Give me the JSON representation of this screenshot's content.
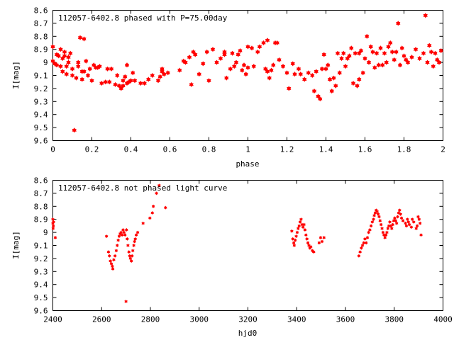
{
  "chart_data": [
    {
      "type": "scatter",
      "title": "112057-6402.8 phased with P=75.00day",
      "xlabel": "phase",
      "ylabel": "I[mag]",
      "xlim": [
        0,
        2
      ],
      "ylim": [
        8.6,
        9.6
      ],
      "y_inverted": true,
      "xticks": [
        "0",
        "0.2",
        "0.4",
        "0.6",
        "0.8",
        "1",
        "1.2",
        "1.4",
        "1.6",
        "1.8",
        "2"
      ],
      "yticks": [
        "8.6",
        "8.7",
        "8.8",
        "8.9",
        "9",
        "9.1",
        "9.2",
        "9.3",
        "9.4",
        "9.5",
        "9.6"
      ],
      "grid": false,
      "color": "#ff0000",
      "points": [
        [
          0.0,
          8.88
        ],
        [
          0.0,
          8.99
        ],
        [
          0.01,
          9.01
        ],
        [
          0.02,
          8.94
        ],
        [
          0.02,
          9.02
        ],
        [
          0.03,
          8.95
        ],
        [
          0.04,
          8.9
        ],
        [
          0.04,
          9.03
        ],
        [
          0.05,
          9.07
        ],
        [
          0.05,
          8.97
        ],
        [
          0.06,
          8.92
        ],
        [
          0.06,
          8.95
        ],
        [
          0.07,
          9.03
        ],
        [
          0.07,
          9.09
        ],
        [
          0.08,
          8.96
        ],
        [
          0.08,
          9.0
        ],
        [
          0.09,
          8.93
        ],
        [
          0.1,
          9.05
        ],
        [
          0.1,
          9.1
        ],
        [
          0.11,
          9.52
        ],
        [
          0.12,
          9.12
        ],
        [
          0.13,
          9.0
        ],
        [
          0.13,
          9.03
        ],
        [
          0.14,
          8.81
        ],
        [
          0.15,
          9.07
        ],
        [
          0.15,
          9.13
        ],
        [
          0.16,
          9.07
        ],
        [
          0.16,
          8.82
        ],
        [
          0.17,
          8.99
        ],
        [
          0.18,
          9.1
        ],
        [
          0.19,
          9.05
        ],
        [
          0.2,
          9.14
        ],
        [
          0.21,
          9.02
        ],
        [
          0.22,
          9.04
        ],
        [
          0.23,
          9.04
        ],
        [
          0.24,
          9.03
        ],
        [
          0.25,
          9.16
        ],
        [
          0.27,
          9.15
        ],
        [
          0.28,
          9.05
        ],
        [
          0.29,
          9.15
        ],
        [
          0.3,
          9.05
        ],
        [
          0.32,
          9.17
        ],
        [
          0.33,
          9.1
        ],
        [
          0.34,
          9.18
        ],
        [
          0.35,
          9.2
        ],
        [
          0.36,
          9.18
        ],
        [
          0.36,
          9.14
        ],
        [
          0.37,
          9.11
        ],
        [
          0.38,
          9.16
        ],
        [
          0.38,
          9.02
        ],
        [
          0.39,
          9.15
        ],
        [
          0.4,
          9.14
        ],
        [
          0.41,
          9.08
        ],
        [
          0.42,
          9.14
        ],
        [
          0.45,
          9.16
        ],
        [
          0.47,
          9.16
        ],
        [
          0.49,
          9.13
        ],
        [
          0.51,
          9.1
        ],
        [
          0.54,
          9.14
        ],
        [
          0.55,
          9.11
        ],
        [
          0.56,
          9.07
        ],
        [
          0.56,
          9.05
        ],
        [
          0.57,
          9.09
        ],
        [
          0.59,
          9.08
        ],
        [
          0.65,
          9.06
        ],
        [
          0.67,
          8.99
        ],
        [
          0.68,
          9.0
        ],
        [
          0.7,
          8.96
        ],
        [
          0.71,
          9.17
        ],
        [
          0.72,
          8.92
        ],
        [
          0.73,
          8.94
        ],
        [
          0.75,
          9.09
        ],
        [
          0.77,
          9.01
        ],
        [
          0.79,
          8.92
        ],
        [
          0.8,
          9.14
        ],
        [
          0.82,
          8.9
        ],
        [
          0.84,
          9.0
        ],
        [
          0.86,
          8.97
        ],
        [
          0.88,
          8.92
        ],
        [
          0.88,
          8.94
        ],
        [
          0.89,
          9.12
        ],
        [
          0.91,
          9.05
        ],
        [
          0.92,
          8.93
        ],
        [
          0.93,
          9.03
        ],
        [
          0.94,
          9.0
        ],
        [
          0.95,
          8.94
        ],
        [
          0.96,
          8.91
        ],
        [
          0.97,
          9.06
        ],
        [
          0.98,
          9.02
        ],
        [
          0.99,
          9.09
        ],
        [
          1.0,
          9.04
        ],
        [
          1.0,
          8.88
        ],
        [
          1.02,
          8.89
        ],
        [
          1.03,
          9.03
        ],
        [
          1.05,
          8.92
        ],
        [
          1.06,
          8.88
        ],
        [
          1.08,
          8.85
        ],
        [
          1.09,
          9.05
        ],
        [
          1.1,
          8.83
        ],
        [
          1.1,
          9.07
        ],
        [
          1.11,
          9.12
        ],
        [
          1.12,
          9.06
        ],
        [
          1.13,
          9.02
        ],
        [
          1.14,
          8.85
        ],
        [
          1.15,
          8.85
        ],
        [
          1.16,
          8.98
        ],
        [
          1.18,
          9.03
        ],
        [
          1.2,
          9.08
        ],
        [
          1.21,
          9.2
        ],
        [
          1.23,
          9.01
        ],
        [
          1.24,
          9.09
        ],
        [
          1.26,
          9.05
        ],
        [
          1.27,
          9.09
        ],
        [
          1.29,
          9.13
        ],
        [
          1.31,
          9.08
        ],
        [
          1.33,
          9.1
        ],
        [
          1.34,
          9.22
        ],
        [
          1.35,
          9.07
        ],
        [
          1.36,
          9.26
        ],
        [
          1.37,
          9.28
        ],
        [
          1.38,
          9.05
        ],
        [
          1.39,
          8.94
        ],
        [
          1.4,
          9.05
        ],
        [
          1.41,
          9.02
        ],
        [
          1.42,
          9.13
        ],
        [
          1.43,
          9.22
        ],
        [
          1.44,
          9.12
        ],
        [
          1.45,
          9.18
        ],
        [
          1.46,
          8.93
        ],
        [
          1.47,
          9.08
        ],
        [
          1.48,
          8.97
        ],
        [
          1.49,
          8.93
        ],
        [
          1.5,
          9.03
        ],
        [
          1.51,
          8.97
        ],
        [
          1.52,
          8.95
        ],
        [
          1.53,
          8.89
        ],
        [
          1.54,
          9.16
        ],
        [
          1.55,
          8.93
        ],
        [
          1.56,
          9.18
        ],
        [
          1.57,
          8.93
        ],
        [
          1.57,
          9.13
        ],
        [
          1.58,
          8.91
        ],
        [
          1.59,
          9.08
        ],
        [
          1.6,
          8.97
        ],
        [
          1.61,
          8.8
        ],
        [
          1.62,
          9.0
        ],
        [
          1.63,
          8.88
        ],
        [
          1.64,
          8.92
        ],
        [
          1.65,
          9.04
        ],
        [
          1.66,
          8.93
        ],
        [
          1.67,
          9.02
        ],
        [
          1.68,
          8.89
        ],
        [
          1.69,
          9.02
        ],
        [
          1.7,
          8.93
        ],
        [
          1.71,
          9.0
        ],
        [
          1.72,
          8.88
        ],
        [
          1.73,
          8.85
        ],
        [
          1.74,
          8.92
        ],
        [
          1.75,
          8.98
        ],
        [
          1.76,
          8.92
        ],
        [
          1.77,
          8.7
        ],
        [
          1.78,
          9.02
        ],
        [
          1.79,
          8.89
        ],
        [
          1.8,
          8.95
        ],
        [
          1.81,
          8.98
        ],
        [
          1.82,
          9.0
        ],
        [
          1.84,
          8.96
        ],
        [
          1.86,
          8.9
        ],
        [
          1.88,
          8.97
        ],
        [
          1.9,
          8.93
        ],
        [
          1.91,
          8.64
        ],
        [
          1.92,
          9.0
        ],
        [
          1.93,
          8.87
        ],
        [
          1.94,
          8.92
        ],
        [
          1.95,
          9.03
        ],
        [
          1.96,
          8.93
        ],
        [
          1.97,
          8.98
        ],
        [
          1.98,
          9.0
        ],
        [
          1.99,
          8.91
        ]
      ]
    },
    {
      "type": "scatter",
      "title": "112057-6402.8 not phased light curve",
      "xlabel": "hjd0",
      "ylabel": "I[mag]",
      "xlim": [
        2400,
        4000
      ],
      "ylim": [
        8.6,
        9.6
      ],
      "y_inverted": true,
      "xticks": [
        "2400",
        "2600",
        "2800",
        "3000",
        "3200",
        "3400",
        "3600",
        "3800",
        "4000"
      ],
      "yticks": [
        "8.6",
        "8.7",
        "8.8",
        "8.9",
        "9",
        "9.1",
        "9.2",
        "9.3",
        "9.4",
        "9.5",
        "9.6"
      ],
      "grid": false,
      "color": "#ff0000",
      "points": [
        [
          2400,
          8.9
        ],
        [
          2400,
          8.93
        ],
        [
          2401,
          8.97
        ],
        [
          2402,
          8.95
        ],
        [
          2403,
          8.92
        ],
        [
          2410,
          9.04
        ],
        [
          2620,
          9.03
        ],
        [
          2628,
          9.15
        ],
        [
          2632,
          9.18
        ],
        [
          2636,
          9.22
        ],
        [
          2640,
          9.24
        ],
        [
          2644,
          9.26
        ],
        [
          2646,
          9.28
        ],
        [
          2650,
          9.21
        ],
        [
          2655,
          9.18
        ],
        [
          2660,
          9.14
        ],
        [
          2664,
          9.1
        ],
        [
          2668,
          9.06
        ],
        [
          2672,
          9.03
        ],
        [
          2676,
          9.01
        ],
        [
          2680,
          9.0
        ],
        [
          2684,
          9.02
        ],
        [
          2688,
          8.98
        ],
        [
          2692,
          9.0
        ],
        [
          2696,
          9.02
        ],
        [
          2700,
          9.53
        ],
        [
          2702,
          8.98
        ],
        [
          2705,
          9.05
        ],
        [
          2708,
          9.1
        ],
        [
          2712,
          9.15
        ],
        [
          2715,
          9.18
        ],
        [
          2718,
          9.2
        ],
        [
          2722,
          9.22
        ],
        [
          2725,
          9.18
        ],
        [
          2728,
          9.14
        ],
        [
          2732,
          9.1
        ],
        [
          2735,
          9.07
        ],
        [
          2738,
          9.05
        ],
        [
          2742,
          9.02
        ],
        [
          2748,
          9.0
        ],
        [
          2770,
          8.93
        ],
        [
          2798,
          8.89
        ],
        [
          2808,
          8.85
        ],
        [
          2812,
          8.8
        ],
        [
          2825,
          8.7
        ],
        [
          2836,
          8.64
        ],
        [
          2862,
          8.81
        ],
        [
          3380,
          8.99
        ],
        [
          3384,
          9.05
        ],
        [
          3388,
          9.08
        ],
        [
          3390,
          9.1
        ],
        [
          3394,
          9.06
        ],
        [
          3398,
          9.03
        ],
        [
          3402,
          9.0
        ],
        [
          3406,
          8.97
        ],
        [
          3410,
          8.95
        ],
        [
          3414,
          8.92
        ],
        [
          3418,
          8.9
        ],
        [
          3422,
          8.94
        ],
        [
          3426,
          8.96
        ],
        [
          3430,
          8.94
        ],
        [
          3434,
          8.98
        ],
        [
          3438,
          9.02
        ],
        [
          3442,
          9.05
        ],
        [
          3446,
          9.08
        ],
        [
          3450,
          9.1
        ],
        [
          3454,
          9.12
        ],
        [
          3458,
          9.11
        ],
        [
          3464,
          9.14
        ],
        [
          3470,
          9.15
        ],
        [
          3492,
          9.08
        ],
        [
          3498,
          9.04
        ],
        [
          3504,
          9.07
        ],
        [
          3512,
          9.04
        ],
        [
          3655,
          9.18
        ],
        [
          3660,
          9.15
        ],
        [
          3665,
          9.12
        ],
        [
          3670,
          9.1
        ],
        [
          3675,
          9.08
        ],
        [
          3680,
          9.05
        ],
        [
          3685,
          9.08
        ],
        [
          3690,
          9.04
        ],
        [
          3695,
          9.0
        ],
        [
          3700,
          8.98
        ],
        [
          3705,
          8.95
        ],
        [
          3710,
          8.92
        ],
        [
          3715,
          8.9
        ],
        [
          3718,
          8.87
        ],
        [
          3722,
          8.85
        ],
        [
          3726,
          8.83
        ],
        [
          3730,
          8.84
        ],
        [
          3734,
          8.86
        ],
        [
          3738,
          8.88
        ],
        [
          3742,
          8.91
        ],
        [
          3746,
          8.94
        ],
        [
          3750,
          8.97
        ],
        [
          3754,
          9.0
        ],
        [
          3758,
          9.02
        ],
        [
          3762,
          9.04
        ],
        [
          3766,
          9.02
        ],
        [
          3770,
          9.0
        ],
        [
          3774,
          8.97
        ],
        [
          3778,
          8.95
        ],
        [
          3782,
          8.92
        ],
        [
          3786,
          8.95
        ],
        [
          3790,
          8.97
        ],
        [
          3794,
          8.94
        ],
        [
          3798,
          8.91
        ],
        [
          3802,
          8.89
        ],
        [
          3806,
          8.91
        ],
        [
          3810,
          8.93
        ],
        [
          3814,
          8.88
        ],
        [
          3818,
          8.85
        ],
        [
          3822,
          8.83
        ],
        [
          3826,
          8.86
        ],
        [
          3830,
          8.89
        ],
        [
          3836,
          8.91
        ],
        [
          3846,
          8.93
        ],
        [
          3850,
          8.95
        ],
        [
          3854,
          8.9
        ],
        [
          3858,
          8.92
        ],
        [
          3862,
          8.94
        ],
        [
          3870,
          8.96
        ],
        [
          3874,
          8.9
        ],
        [
          3880,
          8.92
        ],
        [
          3890,
          8.97
        ],
        [
          3894,
          8.95
        ],
        [
          3898,
          8.88
        ],
        [
          3902,
          8.9
        ],
        [
          3906,
          8.93
        ],
        [
          3910,
          9.02
        ]
      ]
    }
  ]
}
